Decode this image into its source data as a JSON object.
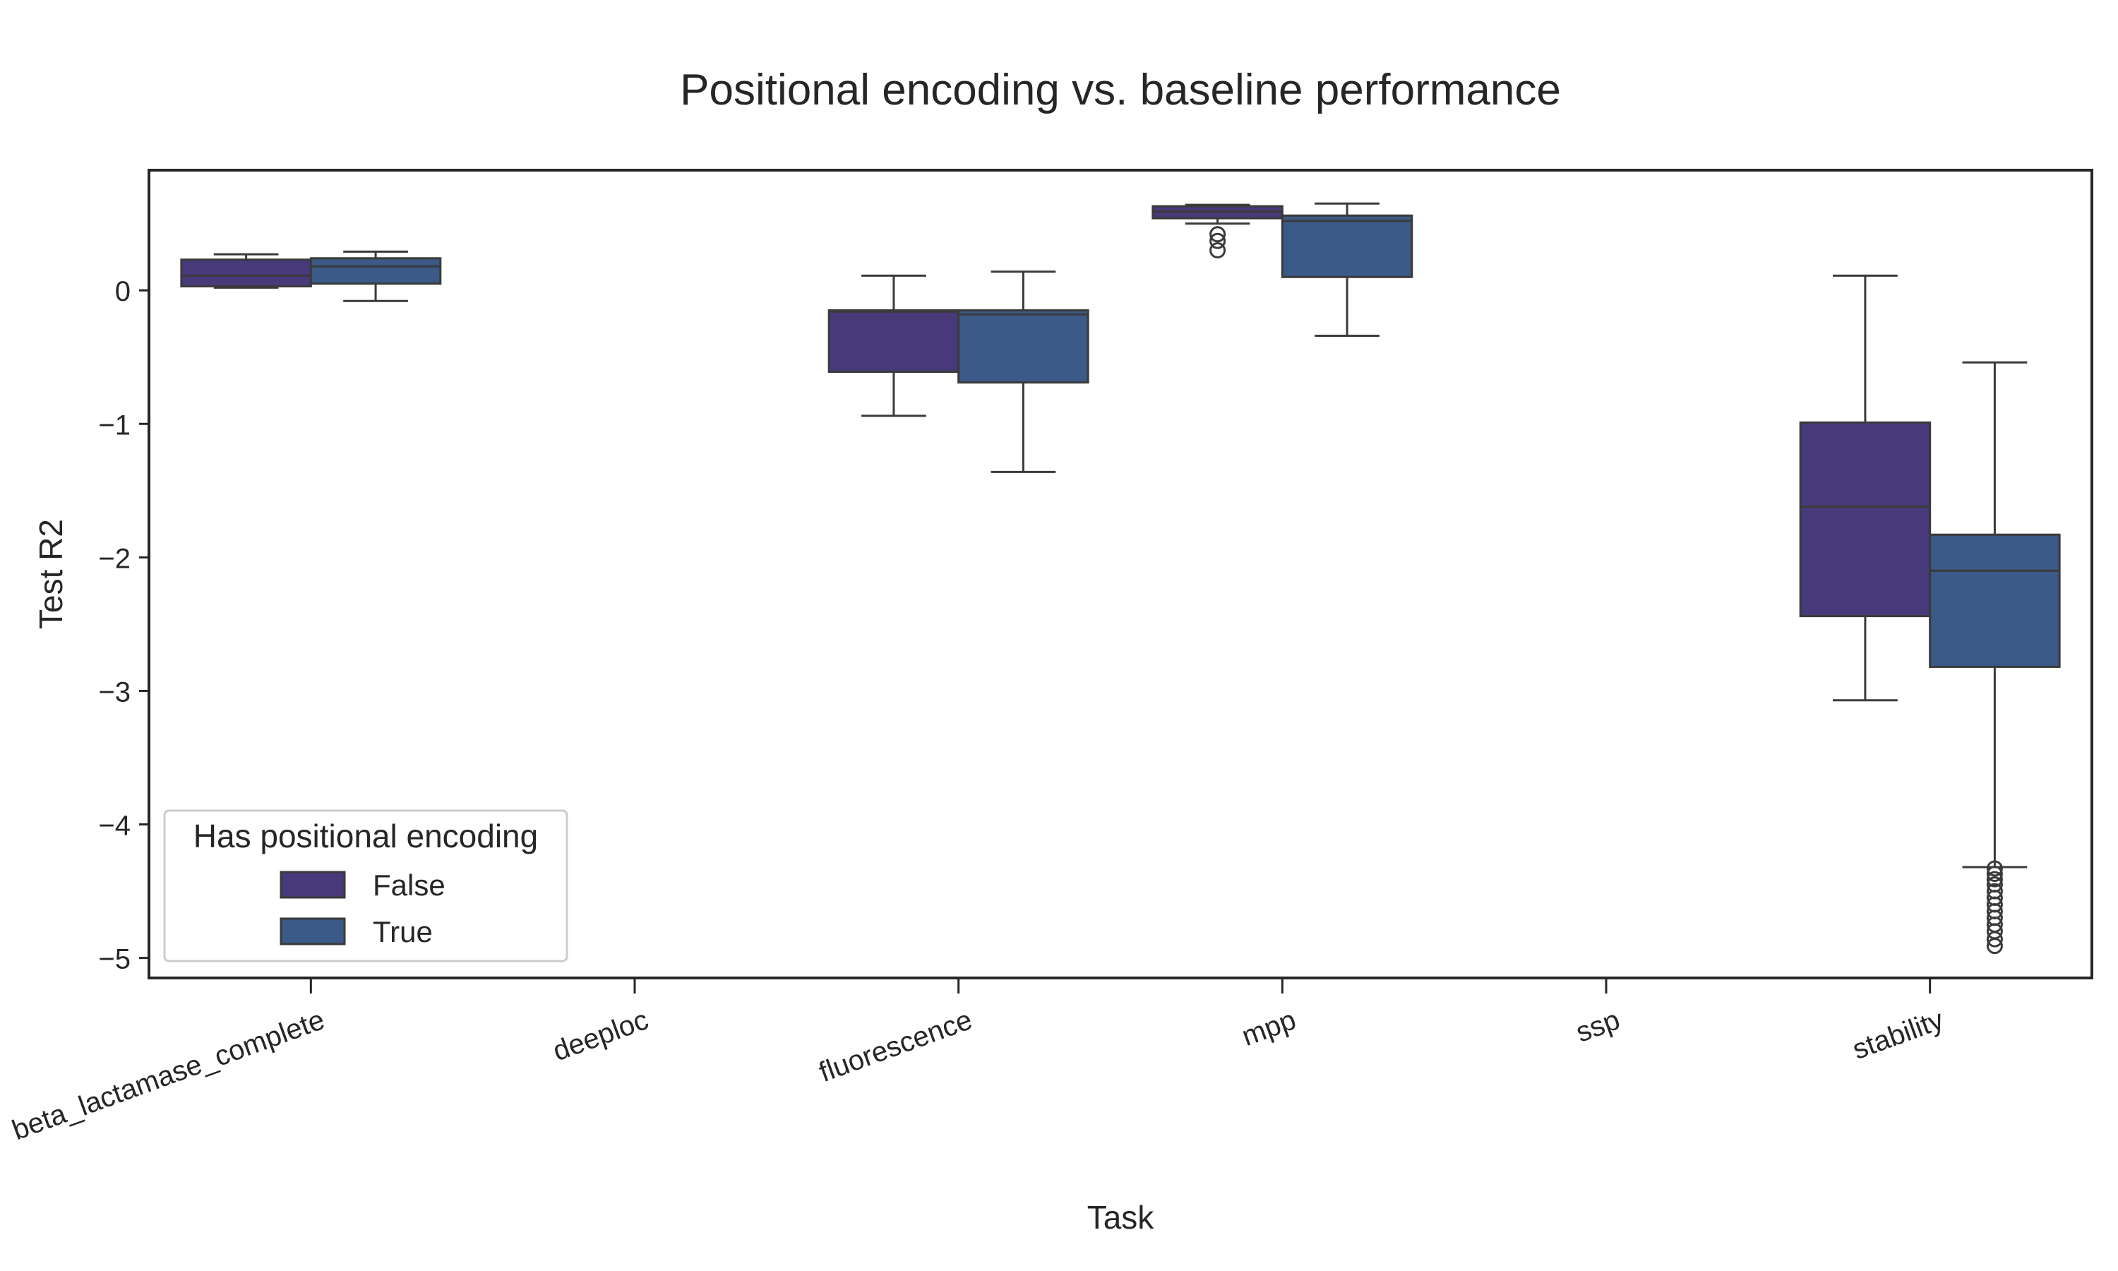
{
  "chart_data": {
    "type": "box",
    "title": "Positional encoding vs. baseline performance",
    "xlabel": "Task",
    "ylabel": "Test R2",
    "ylim": [
      -5.15,
      0.9
    ],
    "yticks": [
      0,
      -1,
      -2,
      -3,
      -4,
      -5
    ],
    "ytick_labels": [
      "0",
      "−1",
      "−2",
      "−3",
      "−4",
      "−5"
    ],
    "categories": [
      "beta_lactamase_complete",
      "deeploc",
      "fluorescence",
      "mpp",
      "ssp",
      "stability"
    ],
    "legend": {
      "title": "Has positional encoding",
      "position": "lower-left"
    },
    "series": [
      {
        "name": "False",
        "color": "#48397a",
        "boxes": [
          {
            "category": "beta_lactamase_complete",
            "q1": 0.03,
            "median": 0.11,
            "q3": 0.23,
            "whisker_low": 0.02,
            "whisker_high": 0.27,
            "outliers": []
          },
          null,
          {
            "category": "fluorescence",
            "q1": -0.61,
            "median": -0.16,
            "q3": -0.15,
            "whisker_low": -0.94,
            "whisker_high": 0.11,
            "outliers": []
          },
          {
            "category": "mpp",
            "q1": 0.54,
            "median": 0.59,
            "q3": 0.63,
            "whisker_low": 0.5,
            "whisker_high": 0.64,
            "outliers": [
              0.42,
              0.37,
              0.3
            ]
          },
          null,
          {
            "category": "stability",
            "q1": -2.44,
            "median": -1.62,
            "q3": -0.99,
            "whisker_low": -3.07,
            "whisker_high": 0.11,
            "outliers": []
          }
        ]
      },
      {
        "name": "True",
        "color": "#3b5a87",
        "boxes": [
          {
            "category": "beta_lactamase_complete",
            "q1": 0.05,
            "median": 0.18,
            "q3": 0.24,
            "whisker_low": -0.08,
            "whisker_high": 0.29,
            "outliers": []
          },
          null,
          {
            "category": "fluorescence",
            "q1": -0.69,
            "median": -0.18,
            "q3": -0.15,
            "whisker_low": -1.36,
            "whisker_high": 0.14,
            "outliers": []
          },
          {
            "category": "mpp",
            "q1": 0.1,
            "median": 0.52,
            "q3": 0.56,
            "whisker_low": -0.34,
            "whisker_high": 0.65,
            "outliers": []
          },
          null,
          {
            "category": "stability",
            "q1": -2.82,
            "median": -2.1,
            "q3": -1.83,
            "whisker_low": -4.32,
            "whisker_high": -0.54,
            "outliers": [
              -4.33,
              -4.37,
              -4.41,
              -4.45,
              -4.5,
              -4.55,
              -4.6,
              -4.65,
              -4.7,
              -4.75,
              -4.8,
              -4.86,
              -4.91
            ]
          }
        ]
      }
    ]
  }
}
